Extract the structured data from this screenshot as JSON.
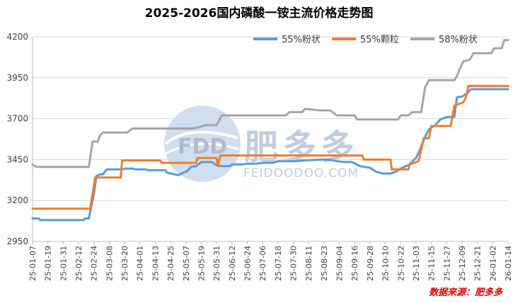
{
  "chart_data": {
    "type": "line",
    "title": "2025-2026国内磷酸一铵主流价格走势图",
    "source": "数据来源：肥多多",
    "watermark": {
      "brand": "肥多多",
      "logo_text": "FDD",
      "site": "FEIDOODOO.COM"
    },
    "ylim": [
      2950,
      4200
    ],
    "yticks": [
      2950,
      3200,
      3450,
      3700,
      3950,
      4200
    ],
    "xticks": [
      "25-01-07",
      "25-01-19",
      "25-01-31",
      "25-02-12",
      "25-02-24",
      "25-03-08",
      "25-03-20",
      "25-04-01",
      "25-04-13",
      "25-04-25",
      "25-05-07",
      "25-05-19",
      "25-05-31",
      "25-06-12",
      "25-06-24",
      "25-07-06",
      "25-07-18",
      "25-07-30",
      "25-08-11",
      "25-08-23",
      "25-09-04",
      "25-09-16",
      "25-09-28",
      "25-10-10",
      "25-10-22",
      "25-11-03",
      "25-11-15",
      "25-11-27",
      "25-12-09",
      "25-12-21",
      "26-01-02",
      "26-01-14"
    ],
    "legend_position": "top-right",
    "grid": "horizontal",
    "series": [
      {
        "name": "55%粉状",
        "color": "#5b9bd5",
        "points": [
          [
            "25-01-07",
            3090
          ],
          [
            "25-01-12",
            3090
          ],
          [
            "25-01-13",
            3080
          ],
          [
            "25-02-16",
            3080
          ],
          [
            "25-02-17",
            3090
          ],
          [
            "25-02-20",
            3090
          ],
          [
            "25-02-24",
            3240
          ],
          [
            "25-02-26",
            3350
          ],
          [
            "25-03-01",
            3360
          ],
          [
            "25-03-03",
            3360
          ],
          [
            "25-03-06",
            3390
          ],
          [
            "25-03-19",
            3390
          ],
          [
            "25-03-20",
            3395
          ],
          [
            "25-03-27",
            3395
          ],
          [
            "25-03-28",
            3390
          ],
          [
            "25-04-06",
            3390
          ],
          [
            "25-04-07",
            3385
          ],
          [
            "25-04-21",
            3385
          ],
          [
            "25-04-22",
            3370
          ],
          [
            "25-04-28",
            3360
          ],
          [
            "25-05-01",
            3355
          ],
          [
            "25-05-05",
            3370
          ],
          [
            "25-05-08",
            3380
          ],
          [
            "25-05-11",
            3405
          ],
          [
            "25-05-15",
            3410
          ],
          [
            "25-05-19",
            3435
          ],
          [
            "25-05-27",
            3435
          ],
          [
            "25-05-31",
            3415
          ],
          [
            "25-06-04",
            3410
          ],
          [
            "25-06-10",
            3410
          ],
          [
            "25-06-12",
            3420
          ],
          [
            "25-06-20",
            3420
          ],
          [
            "25-06-24",
            3425
          ],
          [
            "25-07-01",
            3425
          ],
          [
            "25-07-06",
            3430
          ],
          [
            "25-07-14",
            3430
          ],
          [
            "25-07-18",
            3440
          ],
          [
            "25-07-30",
            3440
          ],
          [
            "25-08-06",
            3445
          ],
          [
            "25-08-16",
            3448
          ],
          [
            "25-08-23",
            3450
          ],
          [
            "25-08-28",
            3448
          ],
          [
            "25-09-02",
            3440
          ],
          [
            "25-09-08",
            3435
          ],
          [
            "25-09-14",
            3435
          ],
          [
            "25-09-20",
            3410
          ],
          [
            "25-09-28",
            3400
          ],
          [
            "25-10-03",
            3375
          ],
          [
            "25-10-08",
            3365
          ],
          [
            "25-10-14",
            3365
          ],
          [
            "25-10-18",
            3375
          ],
          [
            "25-10-22",
            3395
          ],
          [
            "25-10-26",
            3410
          ],
          [
            "25-10-28",
            3415
          ],
          [
            "25-11-03",
            3460
          ],
          [
            "25-11-06",
            3510
          ],
          [
            "25-11-09",
            3570
          ],
          [
            "25-11-12",
            3620
          ],
          [
            "25-11-14",
            3640
          ],
          [
            "25-11-18",
            3660
          ],
          [
            "25-11-22",
            3695
          ],
          [
            "25-11-27",
            3710
          ],
          [
            "25-12-03",
            3710
          ],
          [
            "25-12-05",
            3830
          ],
          [
            "25-12-09",
            3835
          ],
          [
            "25-12-13",
            3855
          ],
          [
            "25-12-16",
            3880
          ],
          [
            "26-01-14",
            3880
          ]
        ]
      },
      {
        "name": "55%颗粒",
        "color": "#ed7d31",
        "points": [
          [
            "25-01-07",
            3150
          ],
          [
            "25-02-21",
            3150
          ],
          [
            "25-02-25",
            3340
          ],
          [
            "25-03-17",
            3340
          ],
          [
            "25-03-18",
            3445
          ],
          [
            "25-04-17",
            3445
          ],
          [
            "25-04-18",
            3430
          ],
          [
            "25-05-15",
            3430
          ],
          [
            "25-05-16",
            3460
          ],
          [
            "25-05-31",
            3460
          ],
          [
            "25-06-01",
            3410
          ],
          [
            "25-06-03",
            3475
          ],
          [
            "25-09-22",
            3475
          ],
          [
            "25-09-23",
            3450
          ],
          [
            "25-10-14",
            3450
          ],
          [
            "25-10-15",
            3390
          ],
          [
            "25-10-28",
            3390
          ],
          [
            "25-10-29",
            3420
          ],
          [
            "25-11-05",
            3440
          ],
          [
            "25-11-09",
            3580
          ],
          [
            "25-11-13",
            3580
          ],
          [
            "25-11-15",
            3655
          ],
          [
            "25-11-30",
            3655
          ],
          [
            "25-12-03",
            3780
          ],
          [
            "25-12-10",
            3800
          ],
          [
            "25-12-12",
            3830
          ],
          [
            "25-12-14",
            3900
          ],
          [
            "26-01-14",
            3900
          ]
        ]
      },
      {
        "name": "58%粉状",
        "color": "#a5a5a5",
        "points": [
          [
            "25-01-07",
            3420
          ],
          [
            "25-01-10",
            3405
          ],
          [
            "25-02-20",
            3405
          ],
          [
            "25-02-23",
            3560
          ],
          [
            "25-02-27",
            3560
          ],
          [
            "25-03-01",
            3600
          ],
          [
            "25-03-03",
            3615
          ],
          [
            "25-03-22",
            3615
          ],
          [
            "25-03-26",
            3640
          ],
          [
            "25-05-12",
            3640
          ],
          [
            "25-05-16",
            3645
          ],
          [
            "25-05-22",
            3660
          ],
          [
            "25-05-31",
            3660
          ],
          [
            "25-06-04",
            3720
          ],
          [
            "25-07-24",
            3720
          ],
          [
            "25-07-27",
            3740
          ],
          [
            "25-08-06",
            3740
          ],
          [
            "25-08-08",
            3760
          ],
          [
            "25-08-20",
            3750
          ],
          [
            "25-08-28",
            3750
          ],
          [
            "25-09-02",
            3720
          ],
          [
            "25-09-16",
            3720
          ],
          [
            "25-09-18",
            3695
          ],
          [
            "25-10-20",
            3695
          ],
          [
            "25-10-22",
            3720
          ],
          [
            "25-10-28",
            3720
          ],
          [
            "25-10-31",
            3740
          ],
          [
            "25-11-07",
            3740
          ],
          [
            "25-11-10",
            3890
          ],
          [
            "25-11-13",
            3935
          ],
          [
            "25-12-03",
            3935
          ],
          [
            "25-12-05",
            3960
          ],
          [
            "25-12-07",
            4000
          ],
          [
            "25-12-10",
            4050
          ],
          [
            "25-12-15",
            4060
          ],
          [
            "25-12-18",
            4100
          ],
          [
            "26-01-01",
            4100
          ],
          [
            "26-01-03",
            4130
          ],
          [
            "26-01-09",
            4130
          ],
          [
            "26-01-11",
            4180
          ],
          [
            "26-01-14",
            4180
          ]
        ]
      }
    ]
  }
}
